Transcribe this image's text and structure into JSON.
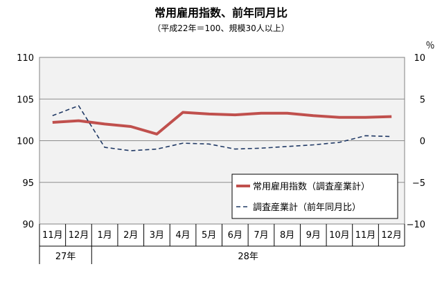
{
  "chart_data": {
    "type": "line",
    "title": "常用雇用指数、前年同月比",
    "subtitle": "（平成22年＝100、規模30人以上）",
    "right_unit": "％",
    "categories": [
      "11月",
      "12月",
      "1月",
      "2月",
      "3月",
      "4月",
      "5月",
      "6月",
      "7月",
      "8月",
      "9月",
      "10月",
      "11月",
      "12月"
    ],
    "year_groups": [
      {
        "label": "27年",
        "span": 2
      },
      {
        "label": "28年",
        "span": 12
      }
    ],
    "y_left": {
      "range": [
        90,
        110
      ],
      "ticks": [
        "110",
        "105",
        "100",
        "95",
        "90"
      ]
    },
    "y_right": {
      "range": [
        -10,
        10
      ],
      "ticks": [
        "10",
        "5",
        "0",
        "−5",
        "−10"
      ]
    },
    "grid": true,
    "legend_position": "lower-right",
    "series": [
      {
        "name": "常用雇用指数（調査産業計）",
        "axis": "left",
        "color": "#c0504d",
        "style": "solid",
        "values": [
          102.2,
          102.4,
          102.0,
          101.7,
          100.8,
          103.4,
          103.2,
          103.1,
          103.3,
          103.3,
          103.0,
          102.8,
          102.8,
          102.9
        ]
      },
      {
        "name": "調査産業計（前年同月比）",
        "axis": "right",
        "color": "#1f3864",
        "style": "dashed",
        "values": [
          3.0,
          4.2,
          -0.8,
          -1.2,
          -1.0,
          -0.3,
          -0.4,
          -1.0,
          -0.9,
          -0.7,
          -0.5,
          -0.2,
          0.6,
          0.5
        ]
      }
    ]
  }
}
